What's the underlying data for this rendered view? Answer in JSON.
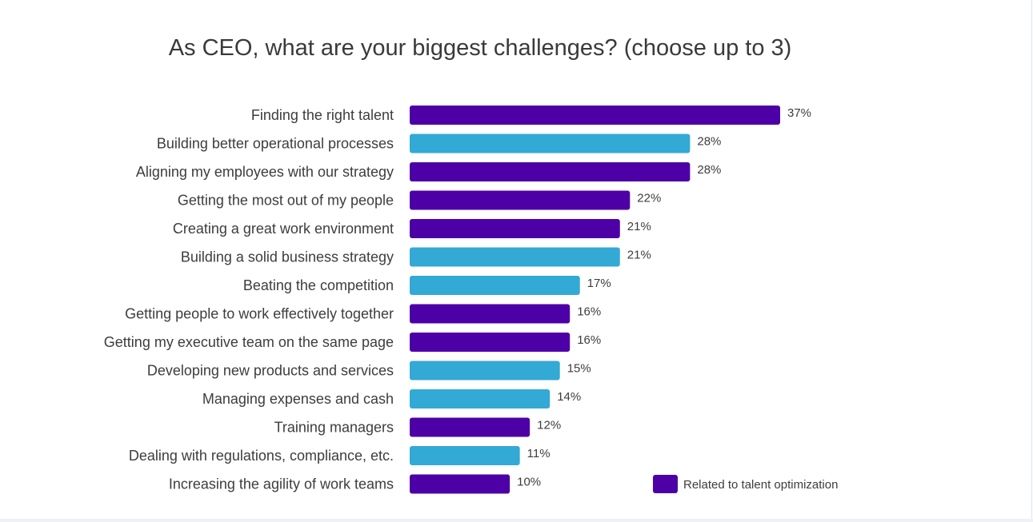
{
  "chart_data": {
    "type": "bar",
    "orientation": "horizontal",
    "title": "As CEO, what are your biggest challenges? (choose up to 3)",
    "categories": [
      "Finding the right talent",
      "Building better operational processes",
      "Aligning my employees with our strategy",
      "Getting the most out of my people",
      "Creating a great work environment",
      "Building a solid business strategy",
      "Beating the competition",
      "Getting people to work effectively together",
      "Getting my executive team on the same page",
      "Developing new products and services",
      "Managing expenses and cash",
      "Training managers",
      "Dealing with regulations, compliance, etc.",
      "Increasing the agility of work teams"
    ],
    "values": [
      37,
      28,
      28,
      22,
      21,
      21,
      17,
      16,
      16,
      15,
      14,
      12,
      11,
      10
    ],
    "value_labels": [
      "37%",
      "28%",
      "28%",
      "22%",
      "21%",
      "21%",
      "17%",
      "16%",
      "16%",
      "15%",
      "14%",
      "12%",
      "11%",
      "10%"
    ],
    "talent_related": [
      true,
      false,
      true,
      true,
      true,
      false,
      false,
      true,
      true,
      false,
      false,
      true,
      false,
      true
    ],
    "colors": {
      "talent": "#4d00a6",
      "other": "#33a9d6"
    },
    "legend": [
      {
        "label": "Related to talent optimization",
        "color": "#4d00a6"
      }
    ],
    "legend_position": "bottom-right",
    "xlim": [
      0,
      37
    ],
    "grid": false
  }
}
